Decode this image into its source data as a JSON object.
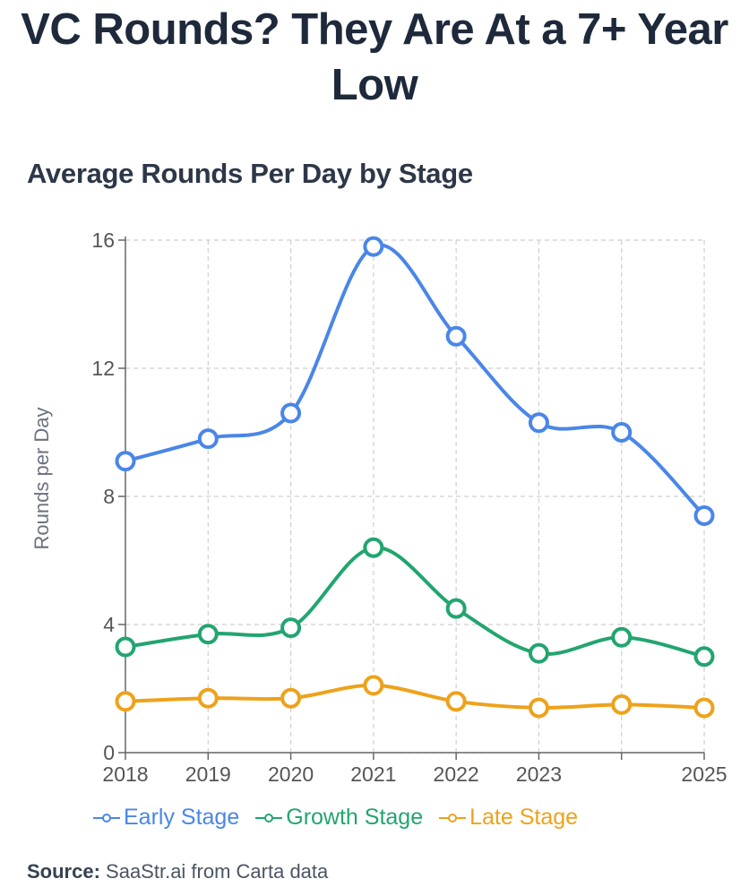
{
  "headline": "VC Rounds? They Are At a 7+ Year Low",
  "chart_data": {
    "type": "line",
    "title": "Average Rounds Per Day by Stage",
    "xlabel": "",
    "ylabel": "Rounds per Day",
    "x": [
      2018,
      2019,
      2020,
      2021,
      2022,
      2023,
      2024,
      2025
    ],
    "x_tick_labels": [
      "2018",
      "2019",
      "2020",
      "2021",
      "2022",
      "2023",
      "",
      "2025"
    ],
    "y_ticks": [
      0,
      4,
      8,
      12,
      16
    ],
    "ylim": [
      0,
      16
    ],
    "grid": true,
    "legend": "bottom",
    "series": [
      {
        "name": "Early Stage",
        "color": "#4a86e8",
        "values": [
          9.1,
          9.8,
          10.6,
          15.8,
          13.0,
          10.3,
          10.0,
          7.4
        ]
      },
      {
        "name": "Growth Stage",
        "color": "#22a56f",
        "values": [
          3.3,
          3.7,
          3.9,
          6.4,
          4.5,
          3.1,
          3.6,
          3.0
        ]
      },
      {
        "name": "Late Stage",
        "color": "#eea21a",
        "values": [
          1.6,
          1.7,
          1.7,
          2.1,
          1.6,
          1.4,
          1.5,
          1.4
        ]
      }
    ]
  },
  "source": {
    "label": "Source:",
    "text": " SaaStr.ai from Carta data"
  }
}
